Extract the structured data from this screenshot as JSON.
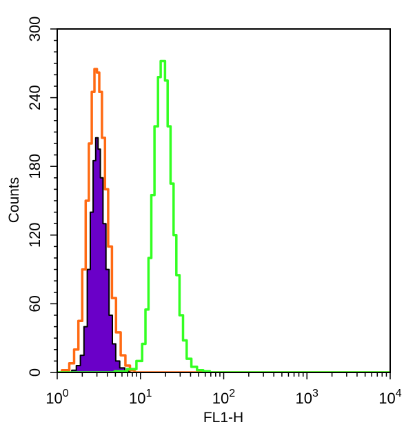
{
  "chart_data": {
    "type": "area",
    "xlabel": "FL1-H",
    "ylabel": "Counts",
    "xscale": "log",
    "xlim": [
      1,
      10000
    ],
    "ylim": [
      0,
      300
    ],
    "x_ticks": [
      {
        "value": 1,
        "base": "10",
        "exp": "0"
      },
      {
        "value": 10,
        "base": "10",
        "exp": "1"
      },
      {
        "value": 100,
        "base": "10",
        "exp": "2"
      },
      {
        "value": 1000,
        "base": "10",
        "exp": "3"
      },
      {
        "value": 10000,
        "base": "10",
        "exp": "4"
      }
    ],
    "y_ticks": [
      "0",
      "60",
      "120",
      "180",
      "240",
      "300"
    ],
    "grid": false,
    "legend": "none",
    "series": [
      {
        "style": "filled",
        "color": "#6a00c8",
        "outline": "#000000",
        "points": [
          [
            1.4,
            0
          ],
          [
            1.6,
            2
          ],
          [
            1.8,
            6
          ],
          [
            2.0,
            15
          ],
          [
            2.2,
            40
          ],
          [
            2.4,
            90
          ],
          [
            2.6,
            140
          ],
          [
            2.8,
            185
          ],
          [
            3.0,
            205
          ],
          [
            3.2,
            195
          ],
          [
            3.4,
            170
          ],
          [
            3.7,
            130
          ],
          [
            4.0,
            90
          ],
          [
            4.4,
            50
          ],
          [
            4.8,
            25
          ],
          [
            5.3,
            10
          ],
          [
            6.0,
            4
          ],
          [
            7.0,
            1
          ],
          [
            8.0,
            0
          ]
        ]
      },
      {
        "style": "line",
        "color": "#ff6a13",
        "points": [
          [
            1.0,
            0
          ],
          [
            1.3,
            2
          ],
          [
            1.5,
            8
          ],
          [
            1.7,
            20
          ],
          [
            1.9,
            45
          ],
          [
            2.1,
            90
          ],
          [
            2.3,
            150
          ],
          [
            2.5,
            200
          ],
          [
            2.7,
            245
          ],
          [
            2.9,
            265
          ],
          [
            3.1,
            262
          ],
          [
            3.3,
            245
          ],
          [
            3.6,
            205
          ],
          [
            3.9,
            160
          ],
          [
            4.3,
            110
          ],
          [
            4.8,
            65
          ],
          [
            5.4,
            35
          ],
          [
            6.2,
            15
          ],
          [
            7.0,
            6
          ],
          [
            8.0,
            2
          ],
          [
            9.0,
            0
          ],
          [
            10000,
            0
          ]
        ]
      },
      {
        "style": "line",
        "color": "#33ff22",
        "points": [
          [
            1.0,
            0
          ],
          [
            4.0,
            0
          ],
          [
            6.0,
            1
          ],
          [
            8.0,
            3
          ],
          [
            10.0,
            10
          ],
          [
            11.0,
            25
          ],
          [
            12.0,
            55
          ],
          [
            13.0,
            100
          ],
          [
            14.0,
            155
          ],
          [
            15.5,
            215
          ],
          [
            17.0,
            258
          ],
          [
            18.0,
            272
          ],
          [
            19.0,
            272
          ],
          [
            20.5,
            255
          ],
          [
            22.0,
            215
          ],
          [
            24.0,
            165
          ],
          [
            26.0,
            120
          ],
          [
            28.0,
            85
          ],
          [
            31.0,
            50
          ],
          [
            34.0,
            28
          ],
          [
            38.0,
            12
          ],
          [
            44.0,
            5
          ],
          [
            52.0,
            2
          ],
          [
            62.0,
            1
          ],
          [
            75.0,
            0
          ],
          [
            10000,
            0
          ]
        ]
      }
    ]
  }
}
